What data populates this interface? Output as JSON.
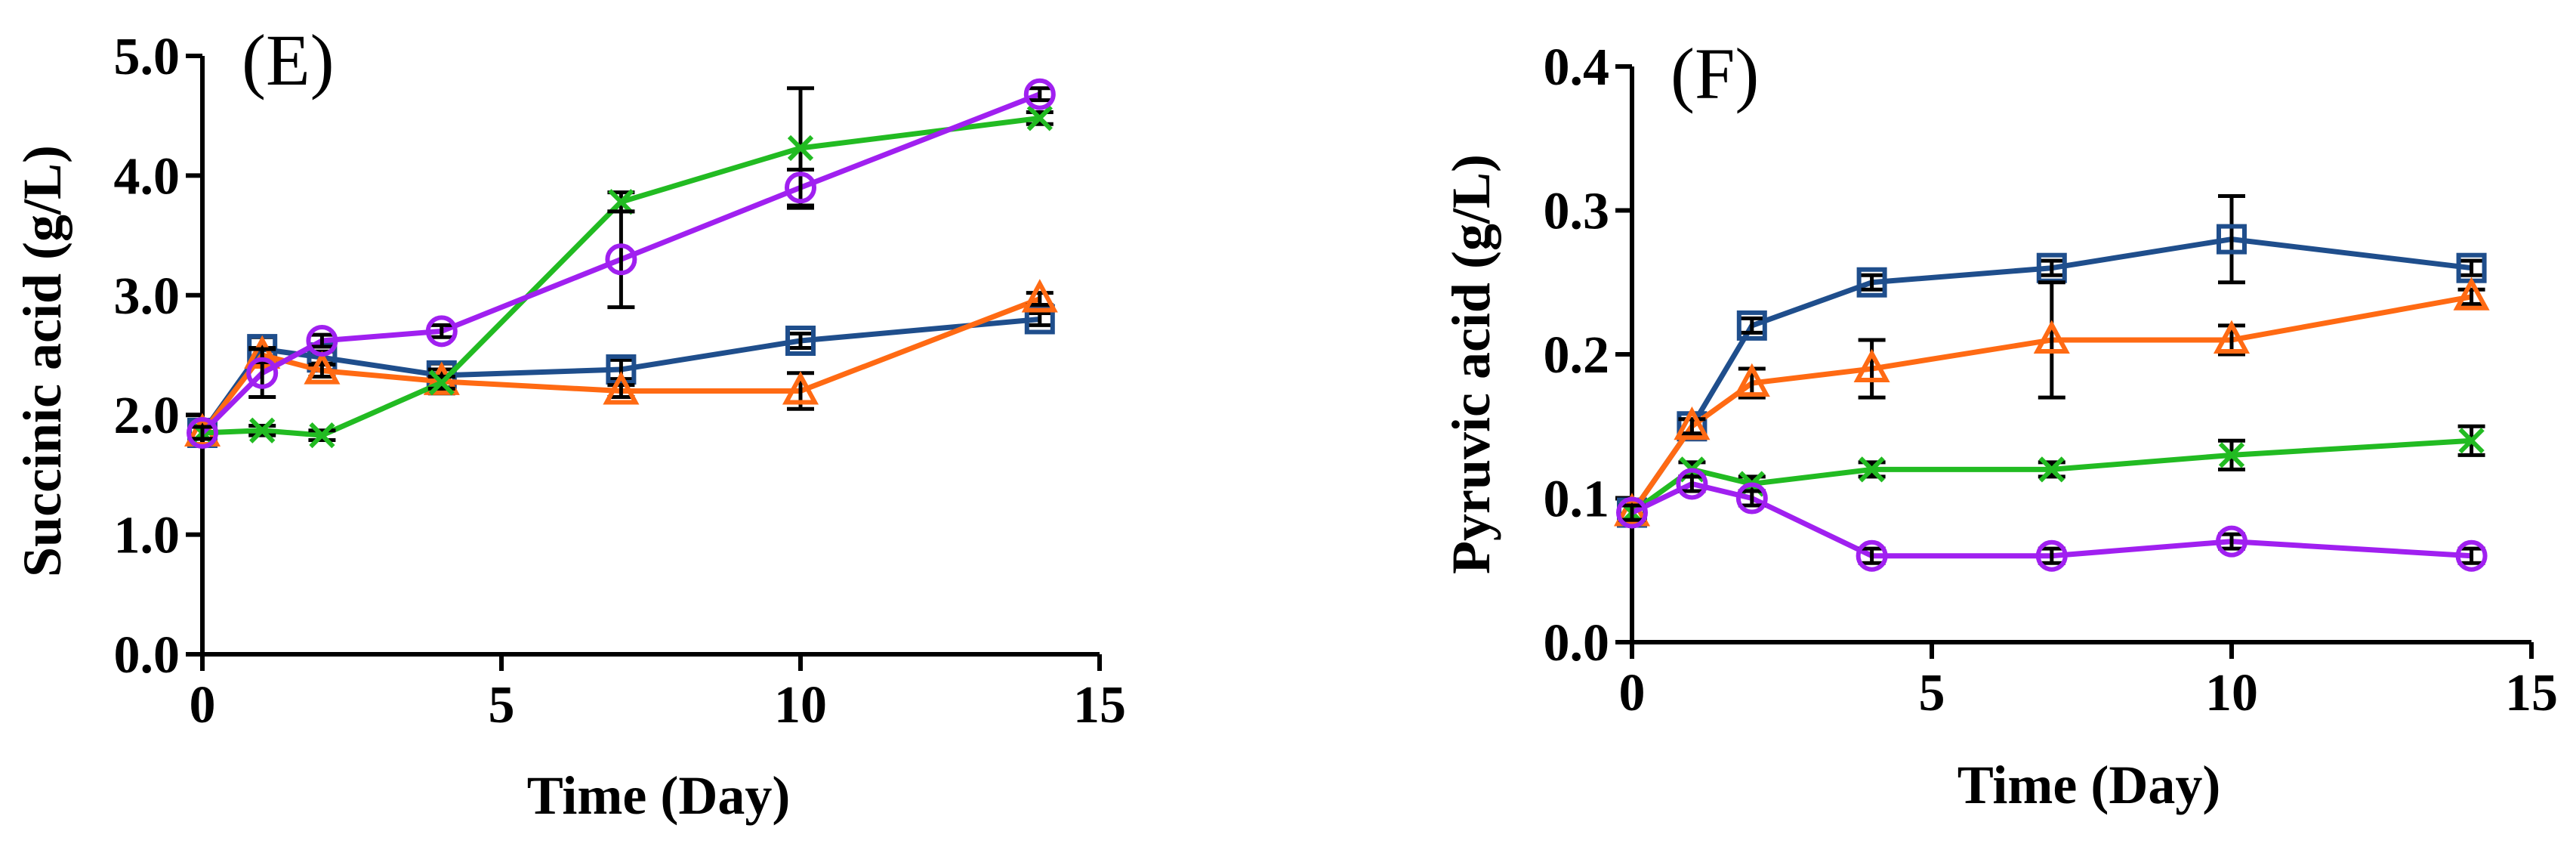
{
  "chart_data": [
    {
      "type": "line",
      "panel_label": "(E)",
      "xlabel": "Time (Day)",
      "ylabel": "Succinic acid (g/L)",
      "xlim": [
        0,
        15
      ],
      "ylim": [
        0,
        5
      ],
      "xticks": [
        0,
        5,
        10,
        15
      ],
      "xtick_labels": [
        "0",
        "5",
        "10",
        "15"
      ],
      "yticks": [
        0,
        1,
        2,
        3,
        4,
        5
      ],
      "ytick_labels": [
        "0.0",
        "1.0",
        "2.0",
        "3.0",
        "4.0",
        "5.0"
      ],
      "grid": false,
      "x": [
        0,
        1,
        2,
        4,
        7,
        10,
        14
      ],
      "series": [
        {
          "name": "square",
          "marker": "square",
          "color": "#1f4e8c",
          "values": [
            1.85,
            2.55,
            2.48,
            2.33,
            2.38,
            2.62,
            2.8
          ],
          "errors": [
            0.05,
            0.1,
            0.05,
            0.1,
            0.08,
            0.06,
            0.05
          ]
        },
        {
          "name": "triangle",
          "marker": "triangle",
          "color": "#ff6a13",
          "values": [
            1.85,
            2.5,
            2.37,
            2.28,
            2.2,
            2.2,
            2.97
          ],
          "errors": [
            0.05,
            0.06,
            0.05,
            0.1,
            0.05,
            0.15,
            0.05
          ]
        },
        {
          "name": "cross",
          "marker": "cross",
          "color": "#22bb22",
          "values": [
            1.85,
            1.87,
            1.83,
            2.27,
            3.78,
            4.23,
            4.48
          ],
          "errors": [
            0.05,
            0.04,
            0.04,
            0.05,
            0.08,
            0.5,
            0.05
          ]
        },
        {
          "name": "circle",
          "marker": "circle",
          "color": "#a020f0",
          "values": [
            1.85,
            2.35,
            2.62,
            2.7,
            3.3,
            3.9,
            4.68
          ],
          "errors": [
            0.05,
            0.2,
            0.05,
            0.05,
            0.4,
            0.15,
            0.05
          ]
        }
      ]
    },
    {
      "type": "line",
      "panel_label": "(F)",
      "xlabel": "Time (Day)",
      "ylabel": "Pyruvic acid (g/L)",
      "xlim": [
        0,
        15
      ],
      "ylim": [
        0,
        0.4
      ],
      "xticks": [
        0,
        5,
        10,
        15
      ],
      "xtick_labels": [
        "0",
        "5",
        "10",
        "15"
      ],
      "yticks": [
        0,
        0.1,
        0.2,
        0.3,
        0.4
      ],
      "ytick_labels": [
        "0.0",
        "0.1",
        "0.2",
        "0.3",
        "0.4"
      ],
      "grid": false,
      "x": [
        0,
        1,
        2,
        4,
        7,
        10,
        14
      ],
      "series": [
        {
          "name": "square",
          "marker": "square",
          "color": "#1f4e8c",
          "values": [
            0.09,
            0.15,
            0.22,
            0.25,
            0.26,
            0.28,
            0.26
          ],
          "errors": [
            0.005,
            0.005,
            0.005,
            0.005,
            0.005,
            0.03,
            0.005
          ]
        },
        {
          "name": "triangle",
          "marker": "triangle",
          "color": "#ff6a13",
          "values": [
            0.09,
            0.15,
            0.18,
            0.19,
            0.21,
            0.21,
            0.24
          ],
          "errors": [
            0.005,
            0.005,
            0.01,
            0.02,
            0.04,
            0.01,
            0.005
          ]
        },
        {
          "name": "cross",
          "marker": "cross",
          "color": "#22bb22",
          "values": [
            0.09,
            0.12,
            0.11,
            0.12,
            0.12,
            0.13,
            0.14
          ],
          "errors": [
            0.005,
            0.005,
            0.005,
            0.005,
            0.005,
            0.01,
            0.01
          ]
        },
        {
          "name": "circle",
          "marker": "circle",
          "color": "#a020f0",
          "values": [
            0.09,
            0.11,
            0.1,
            0.06,
            0.06,
            0.07,
            0.06
          ],
          "errors": [
            0.005,
            0.005,
            0.005,
            0.005,
            0.005,
            0.005,
            0.005
          ]
        }
      ]
    }
  ]
}
